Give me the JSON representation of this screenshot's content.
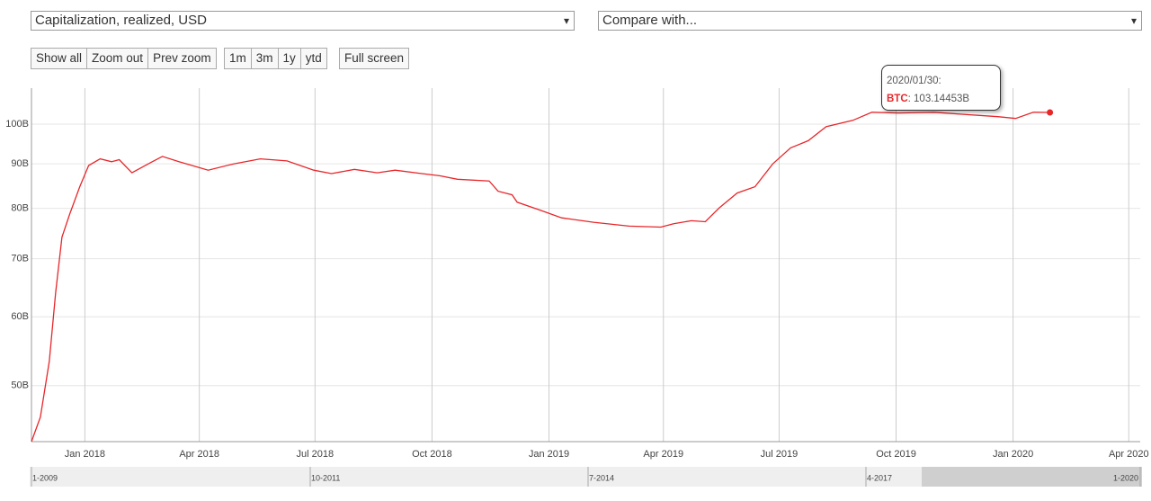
{
  "controls": {
    "metric_select": "Capitalization, realized, USD",
    "compare_select": "Compare with...",
    "buttons": [
      "Show all",
      "Zoom out",
      "Prev zoom",
      "1m",
      "3m",
      "1y",
      "ytd",
      "Full screen"
    ]
  },
  "chart_data": {
    "type": "line",
    "log_scale": true,
    "grid": true,
    "x": [
      "2017-11-20",
      "2017-11-27",
      "2017-12-04",
      "2017-12-09",
      "2017-12-14",
      "2017-12-20",
      "2017-12-28",
      "2018-01-04",
      "2018-01-13",
      "2018-01-22",
      "2018-01-28",
      "2018-02-07",
      "2018-02-23",
      "2018-03-03",
      "2018-03-16",
      "2018-04-08",
      "2018-04-28",
      "2018-05-19",
      "2018-06-09",
      "2018-06-30",
      "2018-07-14",
      "2018-08-01",
      "2018-08-19",
      "2018-09-02",
      "2018-09-23",
      "2018-10-07",
      "2018-10-21",
      "2018-11-15",
      "2018-11-22",
      "2018-12-03",
      "2018-12-07",
      "2018-12-24",
      "2019-01-11",
      "2019-02-05",
      "2019-03-05",
      "2019-03-30",
      "2019-04-09",
      "2019-04-23",
      "2019-05-04",
      "2019-05-15",
      "2019-05-29",
      "2019-06-12",
      "2019-06-26",
      "2019-07-10",
      "2019-07-24",
      "2019-08-07",
      "2019-08-28",
      "2019-09-12",
      "2019-10-03",
      "2019-10-31",
      "2019-11-28",
      "2019-12-20",
      "2020-01-03",
      "2020-01-17",
      "2020-01-30"
    ],
    "series": [
      {
        "name": "BTC",
        "color": "#e8262a",
        "values": [
          43.1,
          46.0,
          53.3,
          64.0,
          74.1,
          78.7,
          84.7,
          89.6,
          91.2,
          90.5,
          91.0,
          87.9,
          90.5,
          91.8,
          90.5,
          88.5,
          90.0,
          91.2,
          90.7,
          88.5,
          87.7,
          88.7,
          87.9,
          88.5,
          87.7,
          87.2,
          86.4,
          86.0,
          83.7,
          82.9,
          81.3,
          79.7,
          78.0,
          77.1,
          76.3,
          76.1,
          76.8,
          77.4,
          77.2,
          80.1,
          83.3,
          84.7,
          90.0,
          93.9,
          95.7,
          99.3,
          101.0,
          103.2,
          103.0,
          103.2,
          102.5,
          102.0,
          101.5,
          103.2,
          103.14453
        ]
      }
    ],
    "xlim": [
      "2017-11-20",
      "2020-04-10"
    ],
    "xticks": [
      {
        "value": "2018-01-01",
        "label": "Jan 2018"
      },
      {
        "value": "2018-04-01",
        "label": "Apr 2018"
      },
      {
        "value": "2018-07-01",
        "label": "Jul 2018"
      },
      {
        "value": "2018-10-01",
        "label": "Oct 2018"
      },
      {
        "value": "2019-01-01",
        "label": "Jan 2019"
      },
      {
        "value": "2019-04-01",
        "label": "Apr 2019"
      },
      {
        "value": "2019-07-01",
        "label": "Jul 2019"
      },
      {
        "value": "2019-10-01",
        "label": "Oct 2019"
      },
      {
        "value": "2020-01-01",
        "label": "Jan 2020"
      },
      {
        "value": "2020-04-01",
        "label": "Apr 2020"
      }
    ],
    "ylim": [
      43.1,
      110
    ],
    "yticks": [
      {
        "value": 50,
        "label": "50B"
      },
      {
        "value": 60,
        "label": "60B"
      },
      {
        "value": 70,
        "label": "70B"
      },
      {
        "value": 80,
        "label": "80B"
      },
      {
        "value": 90,
        "label": "90B"
      },
      {
        "value": 100,
        "label": "100B"
      }
    ],
    "tooltip": {
      "date": "2020/01/30:",
      "label": ": 103.14453B"
    },
    "navigator_labels": [
      "1-2009",
      "10-2011",
      "7-2014",
      "4-2017",
      "1-2020"
    ]
  }
}
